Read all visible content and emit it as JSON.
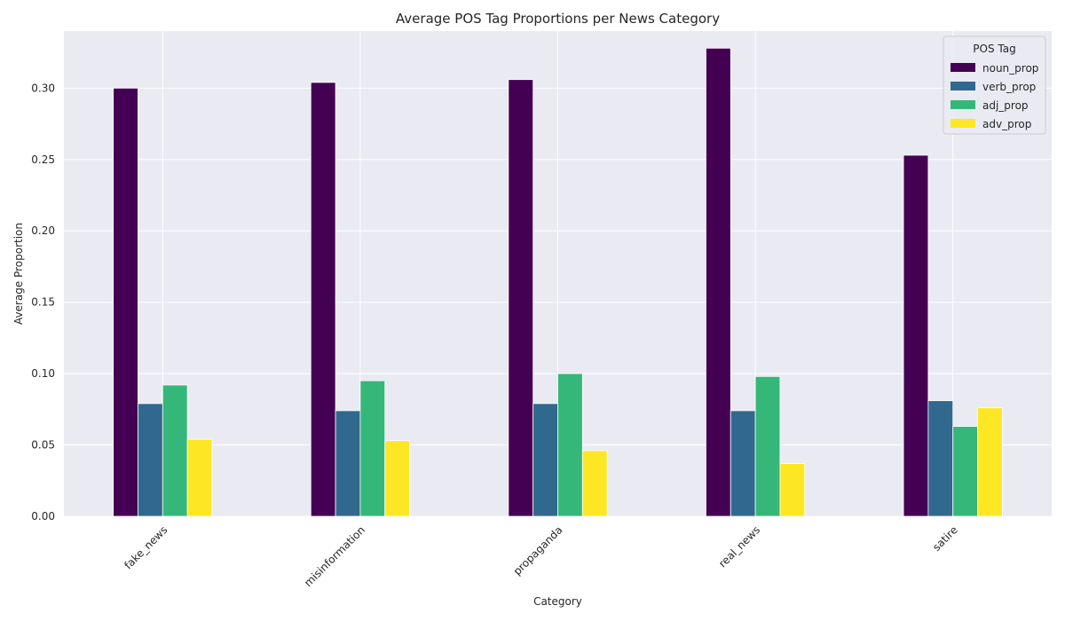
{
  "chart_data": {
    "type": "bar",
    "title": "Average POS Tag Proportions per News Category",
    "xlabel": "Category",
    "ylabel": "Average Proportion",
    "categories": [
      "fake_news",
      "misinformation",
      "propaganda",
      "real_news",
      "satire"
    ],
    "series": [
      {
        "name": "noun_prop",
        "color": "#440154",
        "values": [
          0.3,
          0.304,
          0.306,
          0.328,
          0.253
        ]
      },
      {
        "name": "verb_prop",
        "color": "#31688e",
        "values": [
          0.079,
          0.074,
          0.079,
          0.074,
          0.081
        ]
      },
      {
        "name": "adj_prop",
        "color": "#35b779",
        "values": [
          0.092,
          0.095,
          0.1,
          0.098,
          0.063
        ]
      },
      {
        "name": "adv_prop",
        "color": "#fde725",
        "values": [
          0.054,
          0.053,
          0.046,
          0.037,
          0.076
        ]
      }
    ],
    "ylim": [
      0,
      0.34
    ],
    "yticks": [
      "0.00",
      "0.05",
      "0.10",
      "0.15",
      "0.20",
      "0.25",
      "0.30"
    ],
    "grid": true,
    "legend": {
      "title": "POS Tag",
      "placement": "top-right"
    },
    "colors": {
      "plot_background": "#eaeaf2",
      "grid": "#ffffff"
    }
  }
}
